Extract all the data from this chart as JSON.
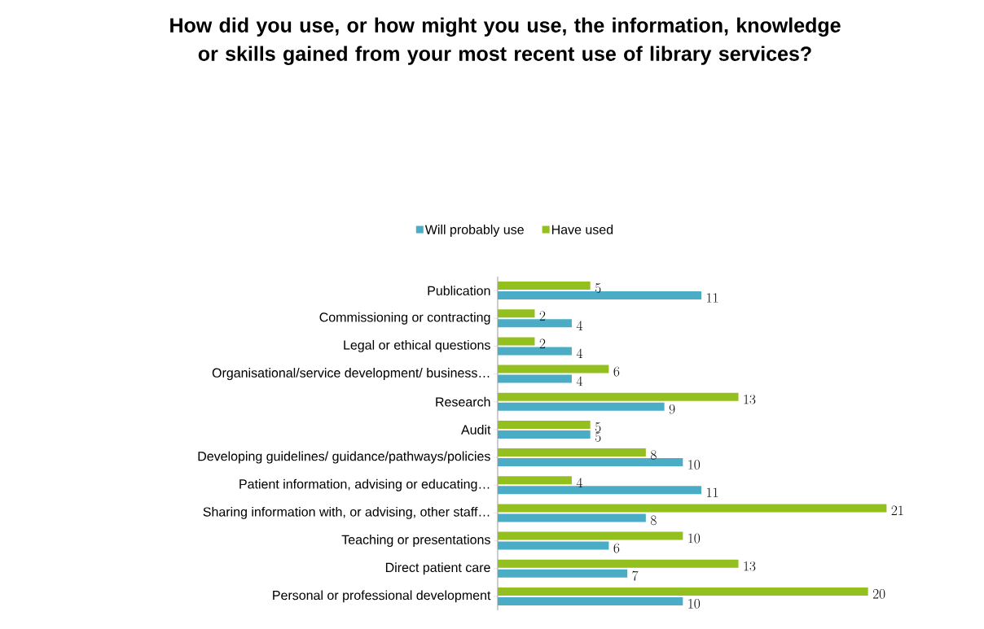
{
  "chart_data": {
    "type": "bar",
    "orientation": "horizontal",
    "title": "How did you use, or how might you use, the information, knowledge or skills gained from your most recent use of library services?",
    "categories": [
      "Publication",
      "Commissioning or contracting",
      "Legal or ethical questions",
      "Organisational/service development/ business…",
      "Research",
      "Audit",
      "Developing guidelines/ guidance/pathways/policies",
      "Patient information, advising or educating…",
      "Sharing information with, or advising, other staff…",
      "Teaching or presentations",
      "Direct patient care",
      "Personal or professional development"
    ],
    "series": [
      {
        "name": "Will probably use",
        "color": "#4bacc6",
        "values": [
          11,
          4,
          4,
          4,
          9,
          5,
          10,
          11,
          8,
          6,
          7,
          10
        ]
      },
      {
        "name": "Have used",
        "color": "#93c01f",
        "values": [
          5,
          2,
          2,
          6,
          13,
          5,
          8,
          4,
          21,
          10,
          13,
          20
        ]
      }
    ],
    "data_labels": true,
    "legend": "top"
  }
}
